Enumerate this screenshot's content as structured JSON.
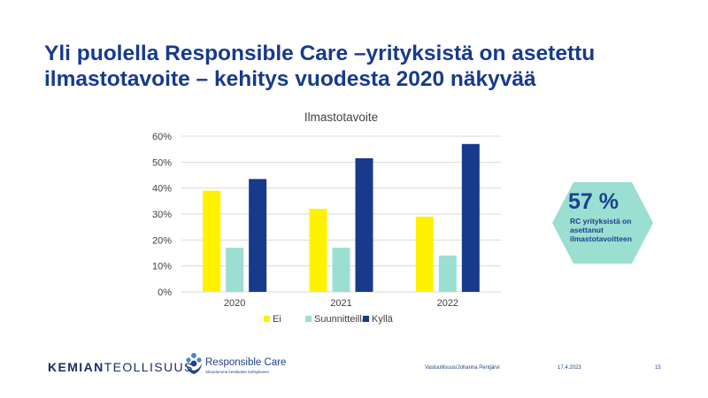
{
  "slide": {
    "title_line1": "Yli puolella Responsible Care –yrityksistä on asetettu",
    "title_line2": "ilmastotavoite – kehitys vuodesta 2020 näkyvää"
  },
  "chart_data": {
    "type": "bar",
    "title": "Ilmastotavoite",
    "categories": [
      "2020",
      "2021",
      "2022"
    ],
    "series": [
      {
        "name": "Ei",
        "values": [
          39,
          32,
          29
        ],
        "color": "#fff200"
      },
      {
        "name": "Suunnitteilla",
        "values": [
          17,
          17,
          14
        ],
        "color": "#9adfd1"
      },
      {
        "name": "Kyllä",
        "values": [
          43.5,
          51.5,
          57
        ],
        "color": "#173a8c"
      }
    ],
    "ylim": [
      0,
      60
    ],
    "yticks": [
      0,
      10,
      20,
      30,
      40,
      50,
      60
    ],
    "ytick_labels": [
      "0%",
      "10%",
      "20%",
      "30%",
      "40%",
      "50%",
      "60%"
    ],
    "grid": true,
    "legend_position": "bottom"
  },
  "callout": {
    "value": "57 %",
    "text": "RC yrityksistä on asettanut ilmastotavoitteen",
    "bg_color": "#9adfd1",
    "text_color": "#1f3f8f"
  },
  "footer": {
    "logo_part1": "KEMIAN",
    "logo_part2": "TEOLLISUUS",
    "rc_name": "Responsible Care",
    "rc_tagline": "Sitoudumme kestävään kehitykseen",
    "author": "Vastuullisuus/Johanna Pentjärvi",
    "date": "17.4.2023",
    "page": "15"
  },
  "colors": {
    "brand": "#173a8c"
  }
}
